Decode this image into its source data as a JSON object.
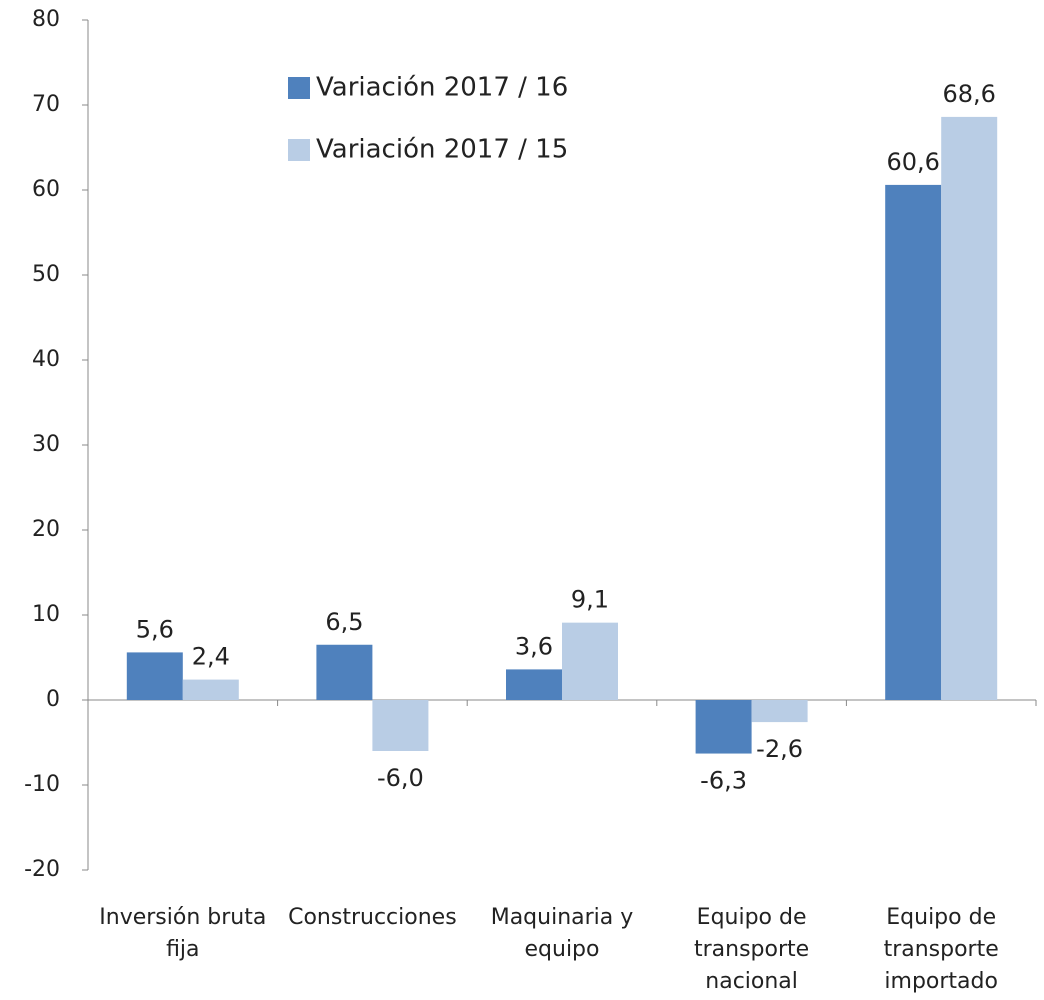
{
  "chart_data": {
    "type": "bar",
    "categories": [
      "Inversión bruta fija",
      "Construcciones",
      "Maquinaria y equipo",
      "Equipo de transporte nacional",
      "Equipo de transporte importado"
    ],
    "series": [
      {
        "name": "Variación 2017 / 16",
        "color": "#4f81bd",
        "values": [
          5.6,
          6.5,
          3.6,
          -6.3,
          60.6
        ],
        "value_labels": [
          "5,6",
          "6,5",
          "3,6",
          "-6,3",
          "60,6"
        ]
      },
      {
        "name": "Variación 2017 / 15",
        "color": "#b9cde5",
        "values": [
          2.4,
          -6.0,
          9.1,
          -2.6,
          68.6
        ],
        "value_labels": [
          "2,4",
          "-6,0",
          "9,1",
          "-2,6",
          "68,6"
        ]
      }
    ],
    "ylim": [
      -20,
      80
    ],
    "yticks": [
      -20,
      -10,
      0,
      10,
      20,
      30,
      40,
      50,
      60,
      70,
      80
    ],
    "grid": false,
    "legend": "upper left"
  }
}
